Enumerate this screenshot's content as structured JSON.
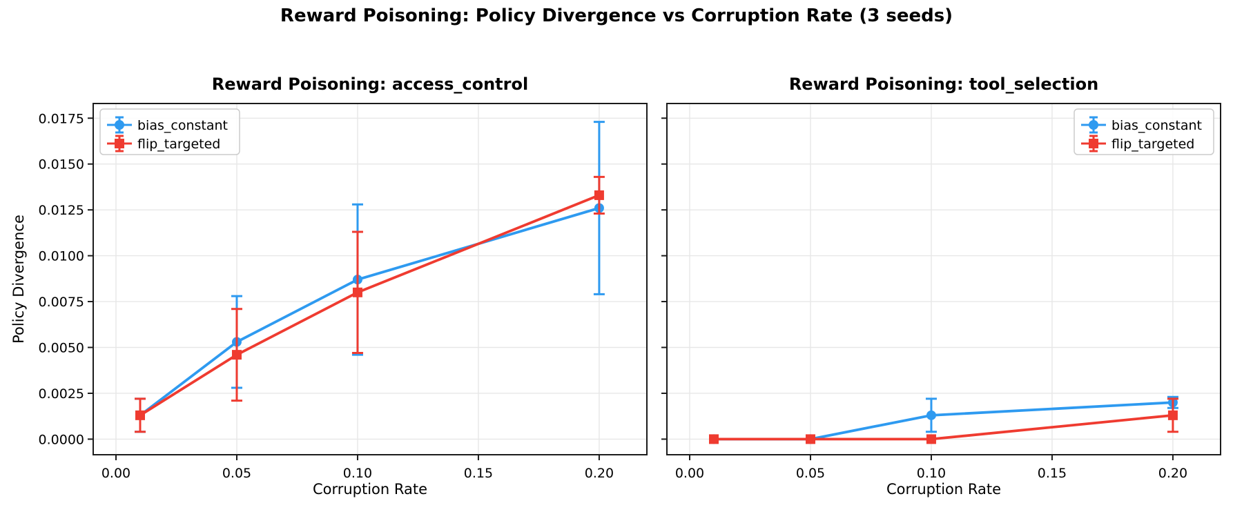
{
  "figure": {
    "suptitle": "Reward Poisoning: Policy Divergence vs Corruption Rate (3 seeds)",
    "background": "#ffffff",
    "text_color": "#000000",
    "grid_color": "#e7e7e7",
    "spine_color": "#1b1b1b"
  },
  "chart_data": [
    {
      "type": "line",
      "title": "Reward Poisoning: access_control",
      "xlabel": "Corruption Rate",
      "ylabel": "Policy Divergence",
      "x": [
        0.01,
        0.05,
        0.1,
        0.2
      ],
      "xticks": [
        0.0,
        0.05,
        0.1,
        0.15,
        0.2
      ],
      "xtick_labels": [
        "0.00",
        "0.05",
        "0.10",
        "0.15",
        "0.20"
      ],
      "yticks": [
        0.0,
        0.0025,
        0.005,
        0.0075,
        0.01,
        0.0125,
        0.015,
        0.0175
      ],
      "ytick_labels": [
        "0.0000",
        "0.0025",
        "0.0050",
        "0.0075",
        "0.0100",
        "0.0125",
        "0.0150",
        "0.0175"
      ],
      "xlim": [
        -0.00943,
        0.21974
      ],
      "ylim": [
        -0.00085,
        0.0183
      ],
      "grid": true,
      "show_ytick_labels": true,
      "legend_position": "upper-left",
      "series": [
        {
          "name": "bias_constant",
          "color": "#2E9AF0",
          "marker": "circle",
          "y": [
            0.0013,
            0.0053,
            0.0087,
            0.0126
          ],
          "yerr": [
            0.0009,
            0.0025,
            0.0041,
            0.0047
          ]
        },
        {
          "name": "flip_targeted",
          "color": "#EF3B30",
          "marker": "square",
          "y": [
            0.0013,
            0.0046,
            0.008,
            0.0133
          ],
          "yerr": [
            0.0009,
            0.0025,
            0.0033,
            0.001
          ]
        }
      ]
    },
    {
      "type": "line",
      "title": "Reward Poisoning: tool_selection",
      "xlabel": "Corruption Rate",
      "ylabel": "",
      "x": [
        0.01,
        0.05,
        0.1,
        0.2
      ],
      "xticks": [
        0.0,
        0.05,
        0.1,
        0.15,
        0.2
      ],
      "xtick_labels": [
        "0.00",
        "0.05",
        "0.10",
        "0.15",
        "0.20"
      ],
      "yticks": [
        0.0,
        0.0025,
        0.005,
        0.0075,
        0.01,
        0.0125,
        0.015,
        0.0175
      ],
      "ytick_labels": [
        "0.0000",
        "0.0025",
        "0.0050",
        "0.0075",
        "0.0100",
        "0.0125",
        "0.0150",
        "0.0175"
      ],
      "xlim": [
        -0.00943,
        0.21974
      ],
      "ylim": [
        -0.00085,
        0.0183
      ],
      "grid": true,
      "show_ytick_labels": false,
      "legend_position": "upper-right",
      "series": [
        {
          "name": "bias_constant",
          "color": "#2E9AF0",
          "marker": "circle",
          "y": [
            0.0,
            0.0,
            0.0013,
            0.002
          ],
          "yerr": [
            0.0,
            0.0,
            0.0009,
            0.0003
          ]
        },
        {
          "name": "flip_targeted",
          "color": "#EF3B30",
          "marker": "square",
          "y": [
            0.0,
            0.0,
            0.0,
            0.0013
          ],
          "yerr": [
            0.0,
            0.0,
            0.0,
            0.0009
          ]
        }
      ]
    }
  ]
}
